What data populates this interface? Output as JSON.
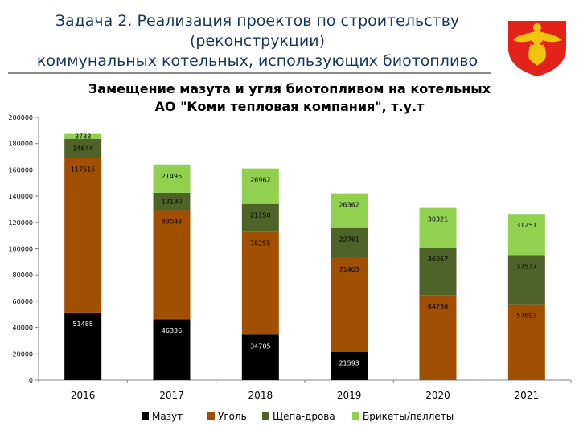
{
  "slide": {
    "title_line1": "Задача 2. Реализация проектов по строительству (реконструкции)",
    "title_line2": "коммунальных котельных, использующих биотопливо"
  },
  "emblem": {
    "icon": "komi-coat-of-arms-icon",
    "color": "#e32219",
    "accent": "#f2c40f"
  },
  "chart_data": {
    "type": "bar",
    "stacked": true,
    "title_line1": "Замещение мазута и угля биотопливом на котельных",
    "title_line2": "АО \"Коми тепловая компания\", т.у.т",
    "categories": [
      "2016",
      "2017",
      "2018",
      "2019",
      "2020",
      "2021"
    ],
    "ylim": [
      0,
      200000
    ],
    "yticks": [
      "0",
      "20000",
      "40000",
      "60000",
      "80000",
      "100000",
      "120000",
      "140000",
      "160000",
      "180000",
      "200000"
    ],
    "grid": false,
    "legend_position": "bottom",
    "series": [
      {
        "name": "Мазут",
        "color": "#000000",
        "values": [
          51485,
          46336,
          34705,
          21593,
          0,
          0
        ],
        "labels": [
          "51485",
          "46336",
          "34705",
          "21593",
          "",
          ""
        ]
      },
      {
        "name": "Уголь",
        "color": "#a14f02",
        "values": [
          117515,
          83048,
          78255,
          71403,
          64736,
          57693
        ],
        "labels": [
          "117515",
          "83048",
          "78255",
          "71403",
          "64736",
          "57693"
        ]
      },
      {
        "name": "Щепа-дрова",
        "color": "#4f6228",
        "values": [
          14644,
          13180,
          21150,
          22761,
          36067,
          37537
        ],
        "labels": [
          "14644",
          "13180",
          "21150",
          "22761",
          "36067",
          "37537"
        ]
      },
      {
        "name": "Брикеты/пеллеты",
        "color": "#92d050",
        "values": [
          3733,
          21495,
          26962,
          26362,
          30321,
          31251
        ],
        "labels": [
          "3733",
          "21495",
          "26962",
          "26362",
          "30321",
          "31251"
        ]
      }
    ]
  }
}
